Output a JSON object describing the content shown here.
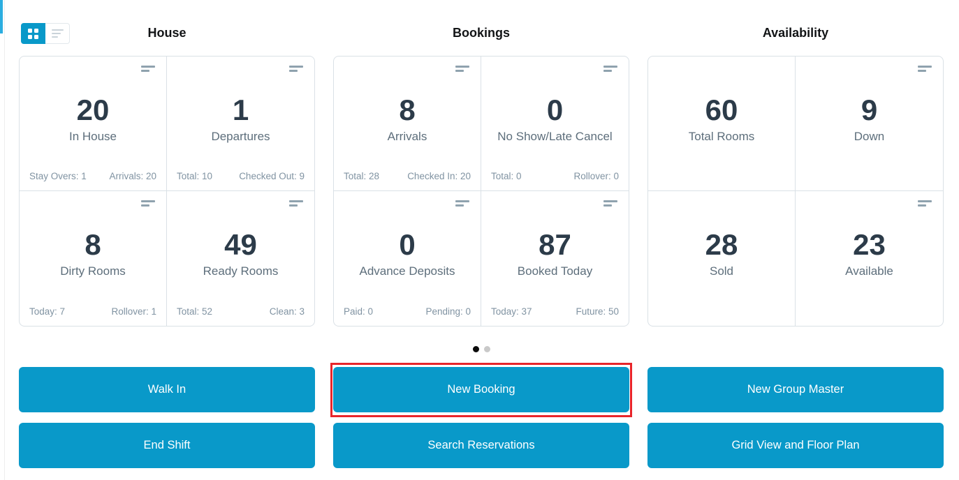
{
  "view_toggle": {
    "grid_view": "grid view (active)",
    "list_view": "list view"
  },
  "sections": [
    {
      "title": "House",
      "cards": [
        {
          "value": "20",
          "label": "In House",
          "footer_left": "Stay Overs: 1",
          "footer_right": "Arrivals: 20"
        },
        {
          "value": "1",
          "label": "Departures",
          "footer_left": "Total: 10",
          "footer_right": "Checked Out: 9"
        },
        {
          "value": "8",
          "label": "Dirty Rooms",
          "footer_left": "Today: 7",
          "footer_right": "Rollover: 1"
        },
        {
          "value": "49",
          "label": "Ready Rooms",
          "footer_left": "Total: 52",
          "footer_right": "Clean: 3"
        }
      ]
    },
    {
      "title": "Bookings",
      "cards": [
        {
          "value": "8",
          "label": "Arrivals",
          "footer_left": "Total: 28",
          "footer_right": "Checked In: 20"
        },
        {
          "value": "0",
          "label": "No Show/Late Cancel",
          "footer_left": "Total: 0",
          "footer_right": "Rollover: 0"
        },
        {
          "value": "0",
          "label": "Advance Deposits",
          "footer_left": "Paid: 0",
          "footer_right": "Pending: 0"
        },
        {
          "value": "87",
          "label": "Booked Today",
          "footer_left": "Today: 37",
          "footer_right": "Future: 50"
        }
      ]
    },
    {
      "title": "Availability",
      "cards": [
        {
          "value": "60",
          "label": "Total Rooms"
        },
        {
          "value": "9",
          "label": "Down"
        },
        {
          "value": "28",
          "label": "Sold"
        },
        {
          "value": "23",
          "label": "Available"
        }
      ]
    }
  ],
  "carousel": {
    "total_pages": 2,
    "active_page": 1
  },
  "buttons": [
    {
      "label": "Walk In"
    },
    {
      "label": "New Booking",
      "highlighted": true
    },
    {
      "label": "New Group Master"
    },
    {
      "label": "End Shift"
    },
    {
      "label": "Search Reservations"
    },
    {
      "label": "Grid View and Floor Plan"
    }
  ],
  "colors": {
    "accent_blue": "#0999c9",
    "annotation_red": "#e8252a",
    "stat_value": "#2c3b49",
    "stat_label": "#5d6e7b",
    "stat_footer": "#8093a2",
    "card_border": "#dae1e6",
    "edge_strip_blue": "#2bade0"
  }
}
